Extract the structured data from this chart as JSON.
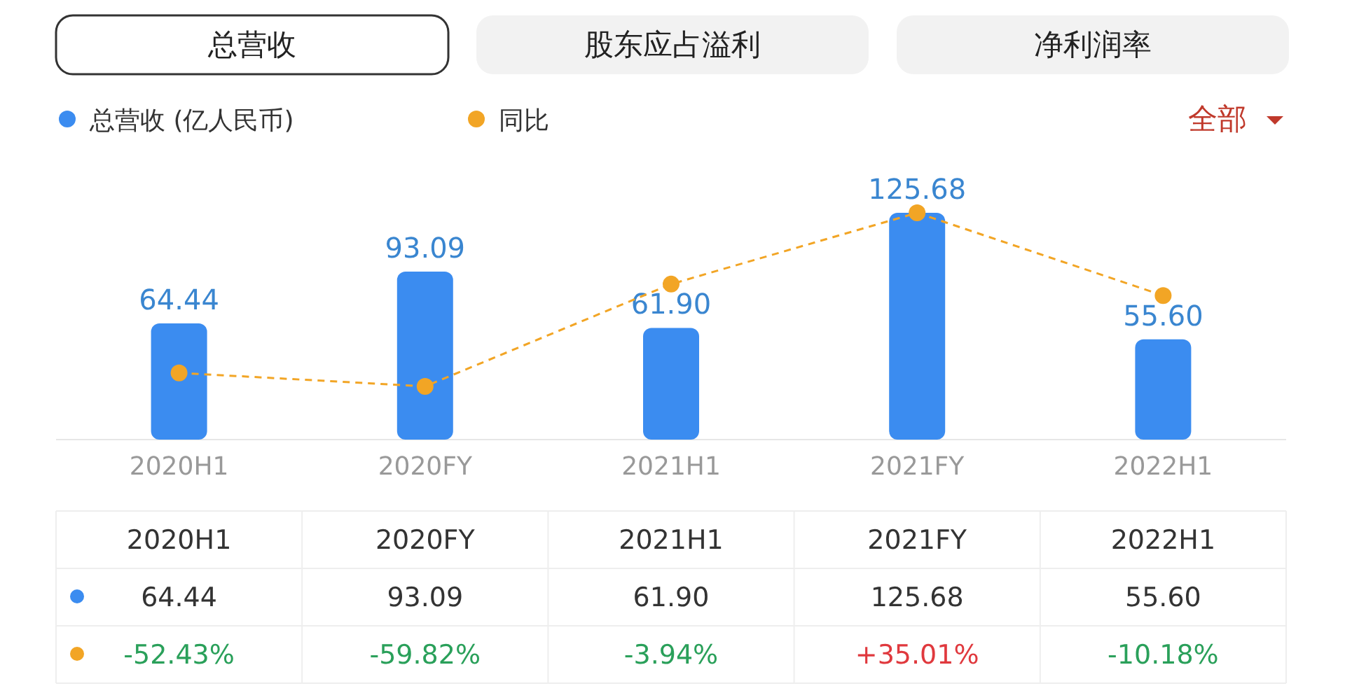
{
  "chart_data": {
    "type": "bar",
    "categories": [
      "2020H1",
      "2020FY",
      "2021H1",
      "2021FY",
      "2022H1"
    ],
    "series": [
      {
        "name": "总营收 (亿人民币)",
        "color": "#3b8cf0",
        "values": [
          64.44,
          93.09,
          61.9,
          125.68,
          55.6
        ],
        "value_labels": [
          "64.44",
          "93.09",
          "61.90",
          "125.68",
          "55.60"
        ]
      },
      {
        "name": "同比",
        "type": "line",
        "axis": "y2",
        "color": "#f2a525",
        "values": [
          -52.43,
          -59.82,
          -3.94,
          35.01,
          -10.18
        ],
        "value_labels": [
          "-52.43%",
          "-59.82%",
          "-3.94%",
          "+35.01%",
          "-10.18%"
        ]
      }
    ],
    "marker": "circle",
    "line_style": "dashed",
    "legend": "top left",
    "annotations": [
      "总营收",
      "股东应占溢利",
      "净利润率",
      "全部"
    ]
  }
}
